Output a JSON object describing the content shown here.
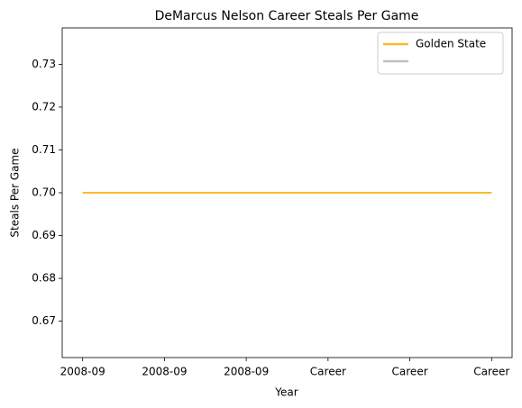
{
  "chart_data": {
    "type": "line",
    "title": "DeMarcus Nelson Career Steals Per Game",
    "x_label": "Year",
    "y_label": "Steals Per Game",
    "categories": [
      "2008-09",
      "2008-09",
      "2008-09",
      "Career",
      "Career",
      "Career"
    ],
    "series": [
      {
        "name": "Golden State",
        "color": "#fdb927",
        "values": [
          0.7,
          0.7,
          0.7,
          0.7,
          0.7,
          0.7
        ]
      },
      {
        "color": "#c0c0c0",
        "values": [
          0.7,
          0.7,
          0.7,
          0.7,
          0.7,
          0.7
        ]
      }
    ],
    "ylim": [
      0.6615,
      0.7385
    ],
    "yticks": [
      0.67,
      0.68,
      0.69,
      {
        "value": 0.7,
        "label": "0.70"
      },
      0.71,
      0.72,
      0.73
    ],
    "legend": "upper right",
    "grid": false
  }
}
